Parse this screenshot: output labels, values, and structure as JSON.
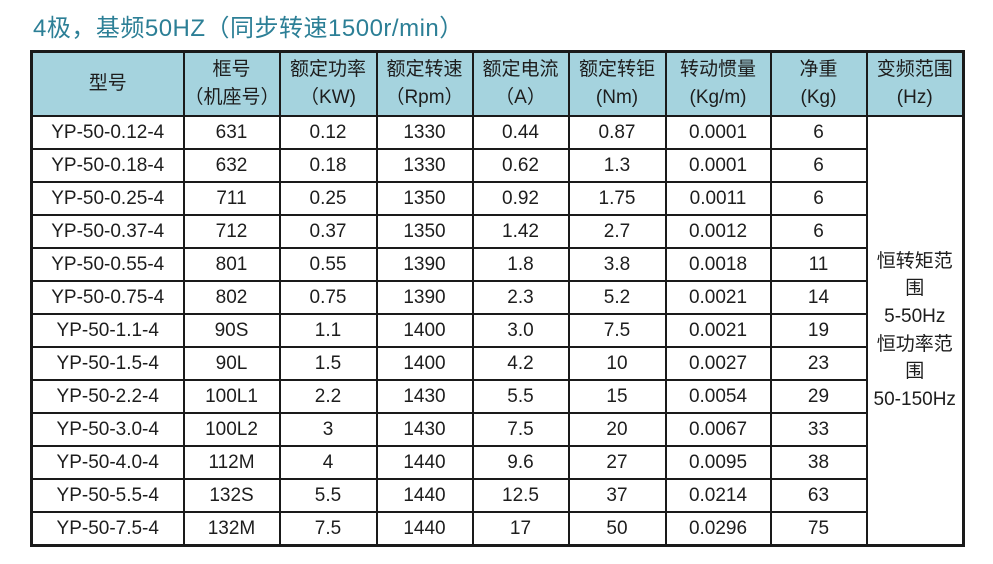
{
  "page": {
    "title": "4极，基频50HZ（同步转速1500r/min）"
  },
  "colors": {
    "title_text": "#2C7F96",
    "header_background": "#A5D3DE",
    "table_border": "#1A1A1A",
    "body_text": "#1D1D1D",
    "page_background": "#FFFFFF"
  },
  "table": {
    "column_keys": [
      "model",
      "frame-number",
      "rated-power",
      "rated-speed",
      "rated-current",
      "rated-torque",
      "moment-of-inertia",
      "net-weight"
    ],
    "headers": [
      {
        "line1": "型号",
        "line2": ""
      },
      {
        "line1": "框号",
        "line2": "（机座号）"
      },
      {
        "line1": "额定功率",
        "line2": "（KW)"
      },
      {
        "line1": "额定转速",
        "line2": "（Rpm）"
      },
      {
        "line1": "额定电流",
        "line2": "（A）"
      },
      {
        "line1": "额定转钜",
        "line2": "(Nm)"
      },
      {
        "line1": "转动惯量",
        "line2": "(Kg/m)"
      },
      {
        "line1": "净重",
        "line2": "(Kg)"
      },
      {
        "line1": "变频范围",
        "line2": "(Hz)"
      }
    ],
    "rows": [
      [
        "YP-50-0.12-4",
        "631",
        "0.12",
        "1330",
        "0.44",
        "0.87",
        "0.0001",
        "6"
      ],
      [
        "YP-50-0.18-4",
        "632",
        "0.18",
        "1330",
        "0.62",
        "1.3",
        "0.0001",
        "6"
      ],
      [
        "YP-50-0.25-4",
        "711",
        "0.25",
        "1350",
        "0.92",
        "1.75",
        "0.0011",
        "6"
      ],
      [
        "YP-50-0.37-4",
        "712",
        "0.37",
        "1350",
        "1.42",
        "2.7",
        "0.0012",
        "6"
      ],
      [
        "YP-50-0.55-4",
        "801",
        "0.55",
        "1390",
        "1.8",
        "3.8",
        "0.0018",
        "11"
      ],
      [
        "YP-50-0.75-4",
        "802",
        "0.75",
        "1390",
        "2.3",
        "5.2",
        "0.0021",
        "14"
      ],
      [
        "YP-50-1.1-4",
        "90S",
        "1.1",
        "1400",
        "3.0",
        "7.5",
        "0.0021",
        "19"
      ],
      [
        "YP-50-1.5-4",
        "90L",
        "1.5",
        "1400",
        "4.2",
        "10",
        "0.0027",
        "23"
      ],
      [
        "YP-50-2.2-4",
        "100L1",
        "2.2",
        "1430",
        "5.5",
        "15",
        "0.0054",
        "29"
      ],
      [
        "YP-50-3.0-4",
        "100L2",
        "3",
        "1430",
        "7.5",
        "20",
        "0.0067",
        "33"
      ],
      [
        "YP-50-4.0-4",
        "112M",
        "4",
        "1440",
        "9.6",
        "27",
        "0.0095",
        "38"
      ],
      [
        "YP-50-5.5-4",
        "132S",
        "5.5",
        "1440",
        "12.5",
        "37",
        "0.0214",
        "63"
      ],
      [
        "YP-50-7.5-4",
        "132M",
        "7.5",
        "1440",
        "17",
        "50",
        "0.0296",
        "75"
      ]
    ],
    "freq_range": {
      "lines": [
        "恒转矩范围",
        "5-50Hz",
        "恒功率范围",
        "50-150Hz"
      ]
    }
  }
}
